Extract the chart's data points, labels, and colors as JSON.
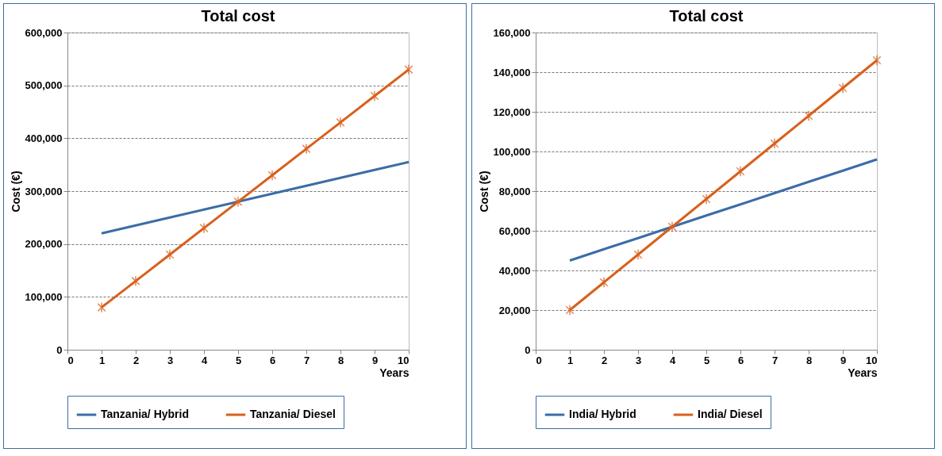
{
  "chart_data": [
    {
      "type": "line",
      "title": "Total cost",
      "xlabel": "Years",
      "ylabel": "Cost (€)",
      "x": [
        1,
        2,
        3,
        4,
        5,
        6,
        7,
        8,
        9,
        10
      ],
      "xlim": [
        0,
        10
      ],
      "xticks": [
        0,
        1,
        2,
        3,
        4,
        5,
        6,
        7,
        8,
        9,
        10
      ],
      "ylim": [
        0,
        600000
      ],
      "yticks": [
        0,
        {
          "value": 100000,
          "label": "100,000"
        },
        {
          "value": 200000,
          "label": "200,000"
        },
        {
          "value": 300000,
          "label": "300,000"
        },
        {
          "value": 400000,
          "label": "400,000"
        },
        {
          "value": 500000,
          "label": "500,000"
        },
        {
          "value": 600000,
          "label": "600,000"
        }
      ],
      "grid": "y",
      "legend": "bottom",
      "series": [
        {
          "name": "Tanzania/ Hybrid",
          "color": "#3b6ca8",
          "marker": "none",
          "values": [
            220000,
            235000,
            250000,
            265000,
            280000,
            295000,
            310000,
            325000,
            340000,
            355000
          ]
        },
        {
          "name": "Tanzania/ Diesel",
          "color": "#d9601c",
          "marker": "cross",
          "values": [
            80000,
            130000,
            180000,
            230000,
            280000,
            330000,
            380000,
            430000,
            480000,
            530000
          ]
        }
      ]
    },
    {
      "type": "line",
      "title": "Total cost",
      "xlabel": "Years",
      "ylabel": "Cost (€)",
      "x": [
        1,
        2,
        3,
        4,
        5,
        6,
        7,
        8,
        9,
        10
      ],
      "xlim": [
        0,
        10
      ],
      "xticks": [
        0,
        1,
        2,
        3,
        4,
        5,
        6,
        7,
        8,
        9,
        10
      ],
      "ylim": [
        0,
        160000
      ],
      "yticks": [
        0,
        {
          "value": 20000,
          "label": "20,000"
        },
        {
          "value": 40000,
          "label": "40,000"
        },
        {
          "value": 60000,
          "label": "60,000"
        },
        {
          "value": 80000,
          "label": "80,000"
        },
        {
          "value": 100000,
          "label": "100,000"
        },
        {
          "value": 120000,
          "label": "120,000"
        },
        {
          "value": 140000,
          "label": "140,000"
        },
        {
          "value": 160000,
          "label": "160,000"
        }
      ],
      "grid": "y",
      "legend": "bottom",
      "series": [
        {
          "name": "India/ Hybrid",
          "color": "#3b6ca8",
          "marker": "none",
          "values": [
            45000,
            50700,
            56300,
            62000,
            67700,
            73300,
            79000,
            84700,
            90300,
            96000
          ]
        },
        {
          "name": "India/ Diesel",
          "color": "#d9601c",
          "marker": "cross",
          "values": [
            20000,
            34000,
            48000,
            62000,
            76000,
            90000,
            104000,
            118000,
            132000,
            146000
          ]
        }
      ]
    }
  ]
}
